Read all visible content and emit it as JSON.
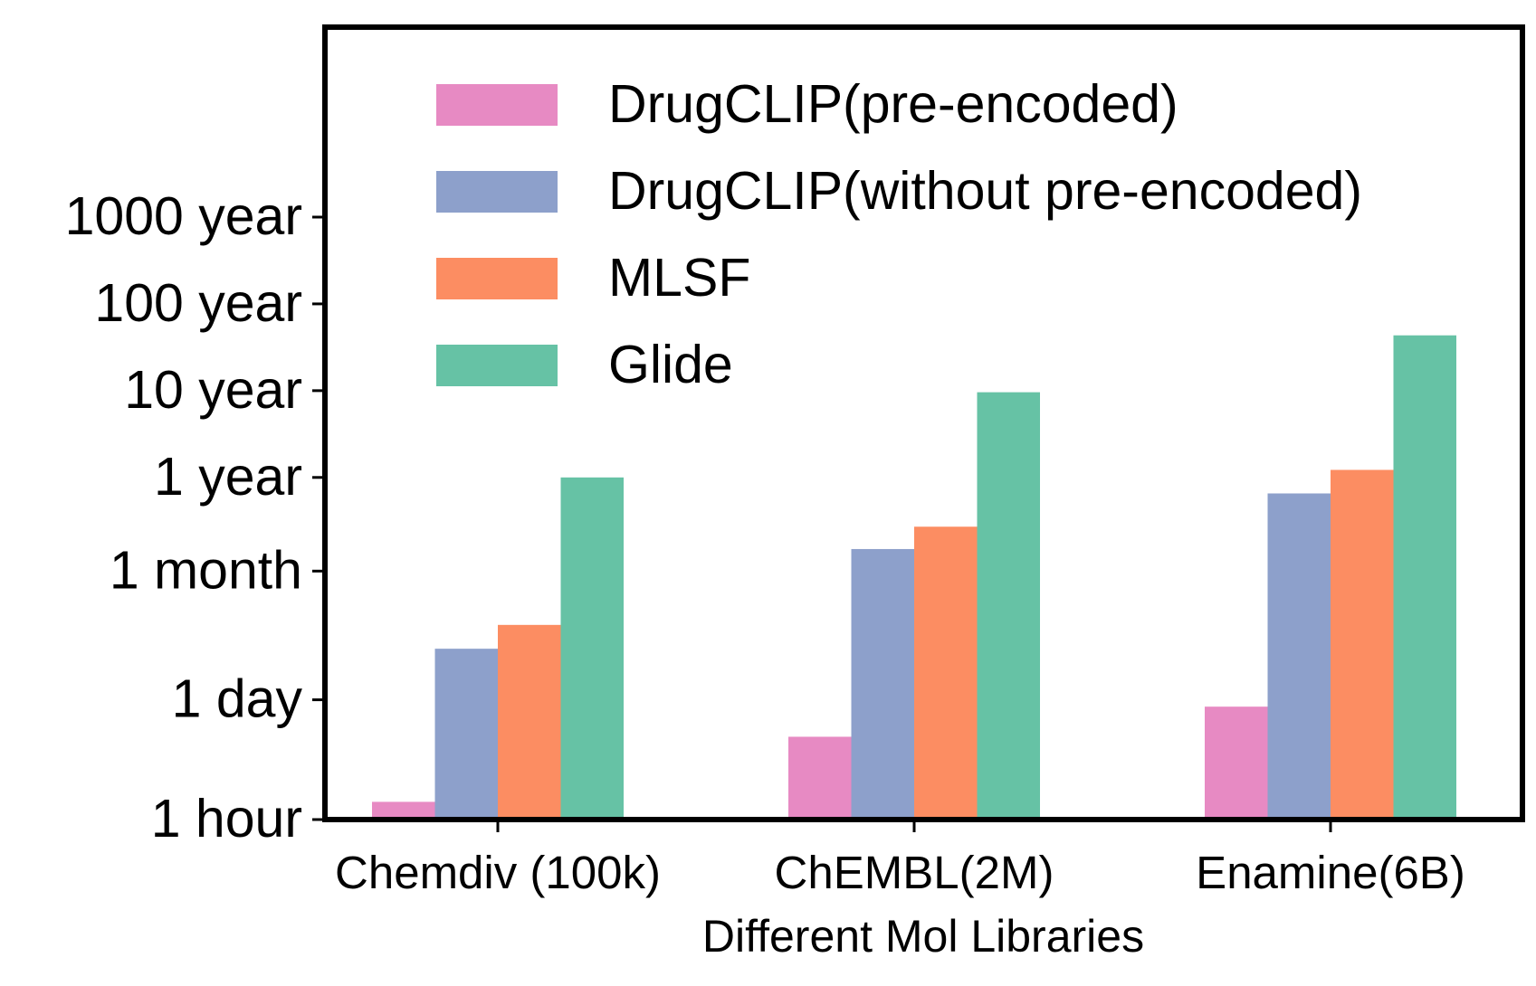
{
  "chart_data": {
    "type": "bar",
    "title": "",
    "xlabel": "Different Mol Libraries",
    "ylabel": "",
    "y_scale": "log",
    "y_unit": "hours",
    "ylim": [
      1,
      8760000
    ],
    "y_ticks": [
      {
        "value": 1,
        "label": "1 hour"
      },
      {
        "value": 24,
        "label": "1 day"
      },
      {
        "value": 730,
        "label": "1 month"
      },
      {
        "value": 8760,
        "label": "1 year"
      },
      {
        "value": 87600,
        "label": "10 year"
      },
      {
        "value": 876000,
        "label": "100 year"
      },
      {
        "value": 8760000,
        "label": "1000 year"
      }
    ],
    "categories": [
      "Chemdiv (100k)",
      "ChEMBL(2M)",
      "Enamine(6B)"
    ],
    "series": [
      {
        "name": "DrugCLIP(pre-encoded)",
        "color": "#e78ac3",
        "values": [
          1.6,
          9,
          20
        ]
      },
      {
        "name": "DrugCLIP(without pre-encoded)",
        "color": "#8da0cb",
        "values": [
          93,
          1310,
          5730
        ]
      },
      {
        "name": "MLSF",
        "color": "#fc8d62",
        "values": [
          175,
          2370,
          10700
        ]
      },
      {
        "name": "Glide",
        "color": "#66c2a5",
        "values": [
          8760,
          84000,
          380000
        ]
      }
    ],
    "legend_position": "top-left",
    "grid": false
  }
}
